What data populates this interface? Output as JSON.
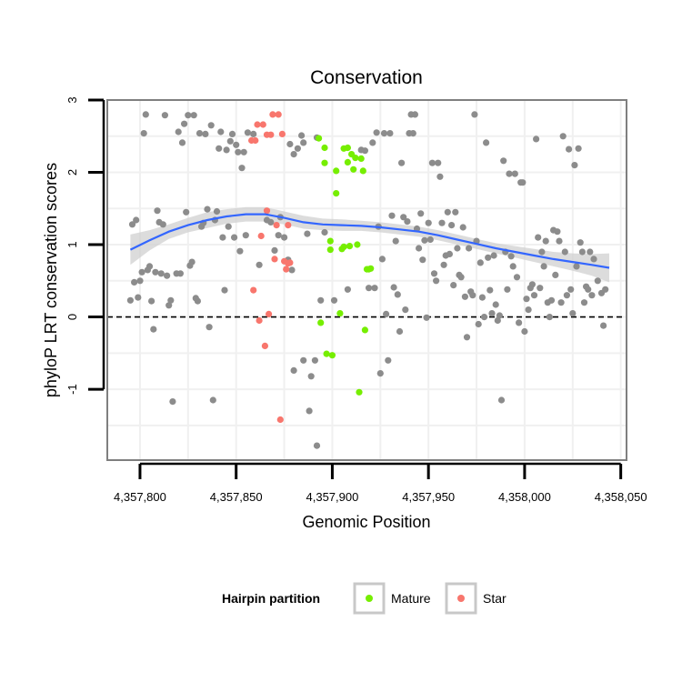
{
  "chart_data": {
    "type": "scatter",
    "title": "Conservation",
    "xlabel": "Genomic Position",
    "ylabel": "phyloP LRT conservation scores",
    "xlim": [
      4357783,
      4358053
    ],
    "ylim": [
      -1.98,
      3.0
    ],
    "x_ticks": [
      4357800,
      4357850,
      4357900,
      4357950,
      4358000,
      4358050
    ],
    "x_tick_labels": [
      "4,357,800",
      "4,357,850",
      "4,357,900",
      "4,357,950",
      "4,358,000",
      "4,358,050"
    ],
    "y_ticks": [
      -1,
      0,
      1,
      2,
      3
    ],
    "y_tick_labels": [
      "-1",
      "0",
      "1",
      "2",
      "3"
    ],
    "grid": true,
    "reference_line": {
      "y": 0,
      "style": "dashed"
    },
    "legend": {
      "title": "Hairpin partition",
      "position": "bottom",
      "entries": [
        {
          "label": "Mature",
          "color": "#76ee00"
        },
        {
          "label": "Star",
          "color": "#f8766d"
        }
      ]
    },
    "colors": {
      "other": "#8c8c8c",
      "mature": "#76ee00",
      "star": "#f8766d",
      "smooth": "#3366ff",
      "ribbon": "#d0d0d0"
    },
    "series": [
      {
        "name": "",
        "color": "#8c8c8c",
        "points": [
          [
            4357795,
            0.23
          ],
          [
            4357796,
            1.28
          ],
          [
            4357797,
            0.48
          ],
          [
            4357798,
            1.34
          ],
          [
            4357799,
            0.27
          ],
          [
            4357800,
            0.5
          ],
          [
            4357801,
            0.62
          ],
          [
            4357802,
            2.54
          ],
          [
            4357803,
            2.8
          ],
          [
            4357804,
            0.65
          ],
          [
            4357805,
            0.7
          ],
          [
            4357806,
            0.22
          ],
          [
            4357807,
            -0.17
          ],
          [
            4357808,
            0.62
          ],
          [
            4357809,
            1.47
          ],
          [
            4357810,
            1.31
          ],
          [
            4357811,
            0.6
          ],
          [
            4357812,
            1.28
          ],
          [
            4357813,
            2.79
          ],
          [
            4357814,
            0.57
          ],
          [
            4357815,
            0.16
          ],
          [
            4357816,
            0.23
          ],
          [
            4357817,
            -1.17
          ],
          [
            4357819,
            0.6
          ],
          [
            4357820,
            2.56
          ],
          [
            4357821,
            0.6
          ],
          [
            4357822,
            2.41
          ],
          [
            4357823,
            2.67
          ],
          [
            4357824,
            1.45
          ],
          [
            4357825,
            2.79
          ],
          [
            4357826,
            0.71
          ],
          [
            4357827,
            0.76
          ],
          [
            4357828,
            2.79
          ],
          [
            4357829,
            0.26
          ],
          [
            4357830,
            0.22
          ],
          [
            4357831,
            2.54
          ],
          [
            4357832,
            1.25
          ],
          [
            4357833,
            1.3
          ],
          [
            4357834,
            2.53
          ],
          [
            4357835,
            1.49
          ],
          [
            4357836,
            -0.14
          ],
          [
            4357837,
            2.65
          ],
          [
            4357838,
            -1.15
          ],
          [
            4357839,
            1.34
          ],
          [
            4357840,
            1.46
          ],
          [
            4357841,
            2.33
          ],
          [
            4357842,
            2.56
          ],
          [
            4357843,
            1.1
          ],
          [
            4357844,
            0.37
          ],
          [
            4357845,
            2.31
          ],
          [
            4357846,
            1.25
          ],
          [
            4357847,
            2.43
          ],
          [
            4357848,
            2.53
          ],
          [
            4357849,
            1.1
          ],
          [
            4357850,
            2.38
          ],
          [
            4357851,
            2.28
          ],
          [
            4357852,
            0.91
          ],
          [
            4357853,
            2.06
          ],
          [
            4357854,
            2.28
          ],
          [
            4357855,
            1.13
          ],
          [
            4357856,
            2.55
          ],
          [
            4357859,
            2.53
          ],
          [
            4357862,
            0.72
          ],
          [
            4357866,
            1.34
          ],
          [
            4357868,
            1.31
          ],
          [
            4357870,
            0.92
          ],
          [
            4357872,
            1.13
          ],
          [
            4357873,
            1.38
          ],
          [
            4357875,
            1.1
          ],
          [
            4357877,
            0.79
          ],
          [
            4357878,
            2.39
          ],
          [
            4357879,
            0.65
          ],
          [
            4357880,
            2.25
          ],
          [
            4357882,
            2.33
          ],
          [
            4357884,
            2.51
          ],
          [
            4357885,
            2.41
          ],
          [
            4357880,
            -0.74
          ],
          [
            4357885,
            -0.6
          ],
          [
            4357887,
            1.15
          ],
          [
            4357888,
            -1.3
          ],
          [
            4357889,
            -0.82
          ],
          [
            4357891,
            -0.6
          ],
          [
            4357892,
            2.48
          ],
          [
            4357892,
            -1.78
          ],
          [
            4357894,
            0.23
          ],
          [
            4357896,
            1.17
          ],
          [
            4357901,
            0.23
          ],
          [
            4357908,
            0.38
          ],
          [
            4357915,
            2.31
          ],
          [
            4357917,
            2.3
          ],
          [
            4357919,
            0.4
          ],
          [
            4357921,
            2.41
          ],
          [
            4357922,
            0.4
          ],
          [
            4357923,
            2.55
          ],
          [
            4357924,
            1.25
          ],
          [
            4357925,
            -0.78
          ],
          [
            4357926,
            0.8
          ],
          [
            4357927,
            2.54
          ],
          [
            4357928,
            0.04
          ],
          [
            4357929,
            -0.6
          ],
          [
            4357930,
            2.54
          ],
          [
            4357931,
            1.4
          ],
          [
            4357932,
            0.41
          ],
          [
            4357933,
            1.05
          ],
          [
            4357934,
            0.31
          ],
          [
            4357935,
            -0.2
          ],
          [
            4357936,
            2.13
          ],
          [
            4357937,
            1.38
          ],
          [
            4357938,
            0.1
          ],
          [
            4357939,
            1.32
          ],
          [
            4357940,
            2.54
          ],
          [
            4357941,
            2.8
          ],
          [
            4357942,
            2.54
          ],
          [
            4357943,
            2.8
          ],
          [
            4357944,
            1.22
          ],
          [
            4357945,
            0.95
          ],
          [
            4357946,
            1.43
          ],
          [
            4357947,
            0.79
          ],
          [
            4357948,
            1.06
          ],
          [
            4357949,
            -0.01
          ],
          [
            4357950,
            1.3
          ],
          [
            4357951,
            1.07
          ],
          [
            4357952,
            2.13
          ],
          [
            4357953,
            0.6
          ],
          [
            4357954,
            0.5
          ],
          [
            4357955,
            2.13
          ],
          [
            4357956,
            1.94
          ],
          [
            4357957,
            1.3
          ],
          [
            4357958,
            0.72
          ],
          [
            4357959,
            0.85
          ],
          [
            4357960,
            1.45
          ],
          [
            4357961,
            0.87
          ],
          [
            4357962,
            1.27
          ],
          [
            4357963,
            0.44
          ],
          [
            4357964,
            1.45
          ],
          [
            4357965,
            0.95
          ],
          [
            4357966,
            0.58
          ],
          [
            4357967,
            0.55
          ],
          [
            4357968,
            1.24
          ],
          [
            4357969,
            0.28
          ],
          [
            4357970,
            -0.28
          ],
          [
            4357971,
            0.95
          ],
          [
            4357972,
            0.35
          ],
          [
            4357973,
            0.3
          ],
          [
            4357974,
            2.8
          ],
          [
            4357975,
            1.05
          ],
          [
            4357976,
            -0.1
          ],
          [
            4357977,
            0.75
          ],
          [
            4357978,
            0.27
          ],
          [
            4357979,
            0.0
          ],
          [
            4357980,
            2.41
          ],
          [
            4357981,
            0.82
          ],
          [
            4357982,
            0.37
          ],
          [
            4357983,
            0.05
          ],
          [
            4357984,
            0.85
          ],
          [
            4357985,
            0.17
          ],
          [
            4357986,
            -0.05
          ],
          [
            4357987,
            0.02
          ],
          [
            4357988,
            -1.15
          ],
          [
            4357989,
            2.16
          ],
          [
            4357990,
            0.9
          ],
          [
            4357991,
            0.38
          ],
          [
            4357992,
            1.98
          ],
          [
            4357993,
            0.84
          ],
          [
            4357994,
            0.7
          ],
          [
            4357995,
            1.98
          ],
          [
            4357996,
            0.55
          ],
          [
            4357997,
            -0.08
          ],
          [
            4357998,
            1.86
          ],
          [
            4357999,
            1.86
          ],
          [
            4358000,
            -0.2
          ],
          [
            4358001,
            0.25
          ],
          [
            4358002,
            0.1
          ],
          [
            4358003,
            0.4
          ],
          [
            4358004,
            0.45
          ],
          [
            4358005,
            0.3
          ],
          [
            4358006,
            2.46
          ],
          [
            4358007,
            1.1
          ],
          [
            4358008,
            0.4
          ],
          [
            4358009,
            0.9
          ],
          [
            4358010,
            0.7
          ],
          [
            4358011,
            1.05
          ],
          [
            4358012,
            0.2
          ],
          [
            4358013,
            0.0
          ],
          [
            4358014,
            0.23
          ],
          [
            4358015,
            1.2
          ],
          [
            4358016,
            0.58
          ],
          [
            4358017,
            1.18
          ],
          [
            4358018,
            1.05
          ],
          [
            4358019,
            0.2
          ],
          [
            4358020,
            2.5
          ],
          [
            4358021,
            0.9
          ],
          [
            4358022,
            0.3
          ],
          [
            4358023,
            2.32
          ],
          [
            4358024,
            0.38
          ],
          [
            4358025,
            0.05
          ],
          [
            4358026,
            2.1
          ],
          [
            4358027,
            0.7
          ],
          [
            4358028,
            2.33
          ],
          [
            4358029,
            1.03
          ],
          [
            4358030,
            0.9
          ],
          [
            4358031,
            0.2
          ],
          [
            4358032,
            0.42
          ],
          [
            4358033,
            0.38
          ],
          [
            4358034,
            0.9
          ],
          [
            4358035,
            0.3
          ],
          [
            4358036,
            0.8
          ],
          [
            4358038,
            0.5
          ],
          [
            4358040,
            0.33
          ],
          [
            4358041,
            -0.12
          ],
          [
            4358042,
            0.38
          ]
        ]
      },
      {
        "name": "Mature",
        "color": "#76ee00",
        "points": [
          [
            4357893,
            2.47
          ],
          [
            4357894,
            -0.08
          ],
          [
            4357896,
            2.34
          ],
          [
            4357896,
            2.13
          ],
          [
            4357897,
            -0.51
          ],
          [
            4357899,
            0.93
          ],
          [
            4357899,
            1.05
          ],
          [
            4357900,
            -0.53
          ],
          [
            4357902,
            1.71
          ],
          [
            4357902,
            2.02
          ],
          [
            4357904,
            0.05
          ],
          [
            4357905,
            0.94
          ],
          [
            4357906,
            2.33
          ],
          [
            4357906,
            0.97
          ],
          [
            4357908,
            2.34
          ],
          [
            4357908,
            2.14
          ],
          [
            4357909,
            0.98
          ],
          [
            4357910,
            2.25
          ],
          [
            4357911,
            2.04
          ],
          [
            4357912,
            2.2
          ],
          [
            4357913,
            1.0
          ],
          [
            4357914,
            -1.04
          ],
          [
            4357915,
            2.19
          ],
          [
            4357916,
            2.02
          ],
          [
            4357917,
            -0.18
          ],
          [
            4357918,
            0.66
          ],
          [
            4357919,
            0.66
          ],
          [
            4357920,
            0.67
          ]
        ]
      },
      {
        "name": "Star",
        "color": "#f8766d",
        "points": [
          [
            4357858,
            2.44
          ],
          [
            4357859,
            0.37
          ],
          [
            4357860,
            2.44
          ],
          [
            4357861,
            2.66
          ],
          [
            4357862,
            -0.05
          ],
          [
            4357863,
            1.12
          ],
          [
            4357864,
            2.66
          ],
          [
            4357865,
            -0.4
          ],
          [
            4357866,
            2.52
          ],
          [
            4357866,
            1.47
          ],
          [
            4357867,
            0.04
          ],
          [
            4357868,
            2.52
          ],
          [
            4357869,
            2.8
          ],
          [
            4357870,
            0.8
          ],
          [
            4357871,
            1.27
          ],
          [
            4357872,
            2.8
          ],
          [
            4357873,
            -1.42
          ],
          [
            4357874,
            2.53
          ],
          [
            4357875,
            0.77
          ],
          [
            4357876,
            0.66
          ],
          [
            4357877,
            1.27
          ],
          [
            4357877,
            0.74
          ],
          [
            4357878,
            0.75
          ]
        ]
      }
    ],
    "smooth": {
      "x": [
        4357795,
        4357805,
        4357815,
        4357825,
        4357835,
        4357845,
        4357855,
        4357865,
        4357875,
        4357885,
        4357895,
        4357905,
        4357915,
        4357925,
        4357935,
        4357945,
        4357955,
        4357965,
        4357975,
        4357985,
        4357995,
        4358005,
        4358015,
        4358025,
        4358035,
        4358044
      ],
      "y": [
        0.93,
        1.06,
        1.18,
        1.27,
        1.34,
        1.39,
        1.42,
        1.42,
        1.37,
        1.31,
        1.28,
        1.27,
        1.26,
        1.24,
        1.21,
        1.18,
        1.13,
        1.07,
        1.01,
        0.95,
        0.9,
        0.85,
        0.8,
        0.76,
        0.72,
        0.68
      ],
      "ci_low": [
        0.72,
        0.92,
        1.08,
        1.17,
        1.23,
        1.29,
        1.32,
        1.32,
        1.28,
        1.22,
        1.2,
        1.19,
        1.19,
        1.17,
        1.14,
        1.11,
        1.06,
        1.0,
        0.94,
        0.88,
        0.82,
        0.76,
        0.7,
        0.64,
        0.57,
        0.48
      ],
      "ci_high": [
        1.14,
        1.2,
        1.28,
        1.37,
        1.45,
        1.49,
        1.52,
        1.52,
        1.46,
        1.4,
        1.36,
        1.35,
        1.33,
        1.31,
        1.28,
        1.25,
        1.2,
        1.14,
        1.08,
        1.02,
        0.98,
        0.94,
        0.9,
        0.88,
        0.87,
        0.88
      ]
    }
  }
}
